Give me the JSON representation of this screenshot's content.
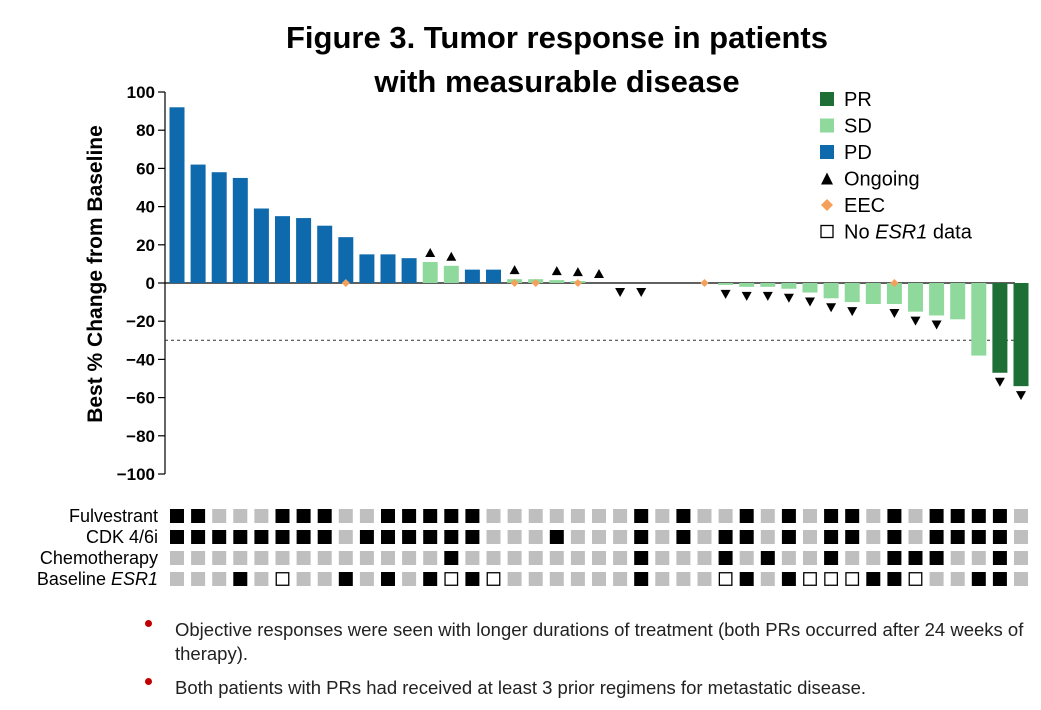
{
  "title_line1": "Figure 3. Tumor response in patients",
  "title_line2": "with measurable disease",
  "colors": {
    "PR": "#1e6f35",
    "SD": "#8ed99b",
    "PD": "#0f6aad",
    "EEC": "#f5a05a",
    "tile_yes": "#000000",
    "tile_no": "#bfbfbf"
  },
  "legend": [
    {
      "key": "PR",
      "label": "PR",
      "marker": "square-dark-green"
    },
    {
      "key": "SD",
      "label": "SD",
      "marker": "square-light-green"
    },
    {
      "key": "PD",
      "label": "PD",
      "marker": "square-blue"
    },
    {
      "key": "ongoing",
      "label": "Ongoing",
      "marker": "triangle-up"
    },
    {
      "key": "eec",
      "label": "EEC",
      "marker": "diamond-orange"
    },
    {
      "key": "no_esr1",
      "label_prefix": "No ",
      "label_italic": "ESR1",
      "label_suffix": " data",
      "marker": "open-square"
    }
  ],
  "row_labels": [
    {
      "text": "Fulvestrant",
      "italic": ""
    },
    {
      "text": "CDK 4/6i",
      "italic": ""
    },
    {
      "text": "Chemotherapy",
      "italic": ""
    },
    {
      "text": "Baseline ",
      "italic": "ESR1"
    }
  ],
  "bullets": [
    "Objective responses were seen with longer durations of treatment (both PRs occurred after 24 weeks of therapy).",
    "Both patients with PRs had received at least 3 prior regimens for metastatic disease."
  ],
  "chart_data": {
    "type": "bar",
    "title": "Figure 3. Tumor response in patients with measurable disease",
    "ylabel": "Best % Change from Baseline",
    "ylim": [
      -100,
      100
    ],
    "yticks": [
      100,
      80,
      60,
      40,
      20,
      0,
      -20,
      -40,
      -60,
      -80,
      -100
    ],
    "reference_line": -30,
    "values": [
      92,
      62,
      58,
      55,
      39,
      35,
      34,
      30,
      24,
      15,
      15,
      13,
      11,
      9,
      7,
      7,
      2,
      2,
      1.5,
      1,
      0,
      0,
      0,
      0,
      0,
      0,
      -1,
      -2,
      -2,
      -3,
      -5,
      -8,
      -10,
      -11,
      -11,
      -15,
      -17,
      -19,
      -38,
      -47,
      -54
    ],
    "response": [
      "PD",
      "PD",
      "PD",
      "PD",
      "PD",
      "PD",
      "PD",
      "PD",
      "PD",
      "PD",
      "PD",
      "PD",
      "SD",
      "SD",
      "PD",
      "PD",
      "SD",
      "SD",
      "SD",
      "SD",
      "SD",
      "SD",
      "SD",
      "SD",
      "SD",
      "SD",
      "SD",
      "SD",
      "SD",
      "SD",
      "SD",
      "SD",
      "SD",
      "SD",
      "SD",
      "SD",
      "SD",
      "SD",
      "SD",
      "PR",
      "PR"
    ],
    "ongoing": [
      "",
      "",
      "",
      "",
      "",
      "",
      "",
      "",
      "",
      "",
      "",
      "",
      "up",
      "up",
      "",
      "",
      "up",
      "",
      "up",
      "up",
      "up",
      "down",
      "down",
      "",
      "",
      "",
      "down",
      "down",
      "down",
      "down",
      "down",
      "down",
      "down",
      "",
      "down",
      "down",
      "down",
      "",
      "",
      "down",
      "down"
    ],
    "eec": [
      8,
      16,
      17,
      19,
      25,
      34
    ],
    "tiles": {
      "Fulvestrant": [
        1,
        1,
        0,
        0,
        0,
        1,
        1,
        1,
        0,
        0,
        1,
        1,
        1,
        1,
        1,
        0,
        0,
        0,
        0,
        0,
        0,
        0,
        1,
        0,
        1,
        0,
        0,
        1,
        0,
        1,
        0,
        1,
        1,
        0,
        1,
        0,
        1,
        1,
        1,
        1,
        0
      ],
      "CDK 4/6i": [
        1,
        1,
        1,
        1,
        1,
        1,
        1,
        1,
        0,
        1,
        1,
        1,
        1,
        1,
        1,
        0,
        0,
        0,
        1,
        0,
        0,
        0,
        1,
        0,
        1,
        0,
        1,
        1,
        0,
        1,
        0,
        1,
        1,
        0,
        1,
        0,
        1,
        1,
        1,
        1,
        0
      ],
      "Chemotherapy": [
        0,
        0,
        0,
        0,
        0,
        0,
        0,
        0,
        0,
        0,
        0,
        0,
        0,
        1,
        0,
        0,
        0,
        0,
        0,
        0,
        0,
        0,
        1,
        0,
        0,
        0,
        1,
        0,
        1,
        0,
        0,
        1,
        0,
        0,
        1,
        1,
        1,
        0,
        0,
        1,
        0
      ],
      "Baseline ESR1": [
        0,
        0,
        0,
        1,
        0,
        2,
        0,
        0,
        1,
        0,
        1,
        0,
        1,
        2,
        1,
        2,
        0,
        0,
        0,
        0,
        0,
        0,
        1,
        0,
        0,
        0,
        2,
        1,
        0,
        1,
        2,
        2,
        2,
        1,
        1,
        2,
        0,
        0,
        1,
        1,
        0
      ]
    },
    "tile_legend": {
      "0": "no",
      "1": "yes",
      "2": "no ESR1 data"
    }
  }
}
